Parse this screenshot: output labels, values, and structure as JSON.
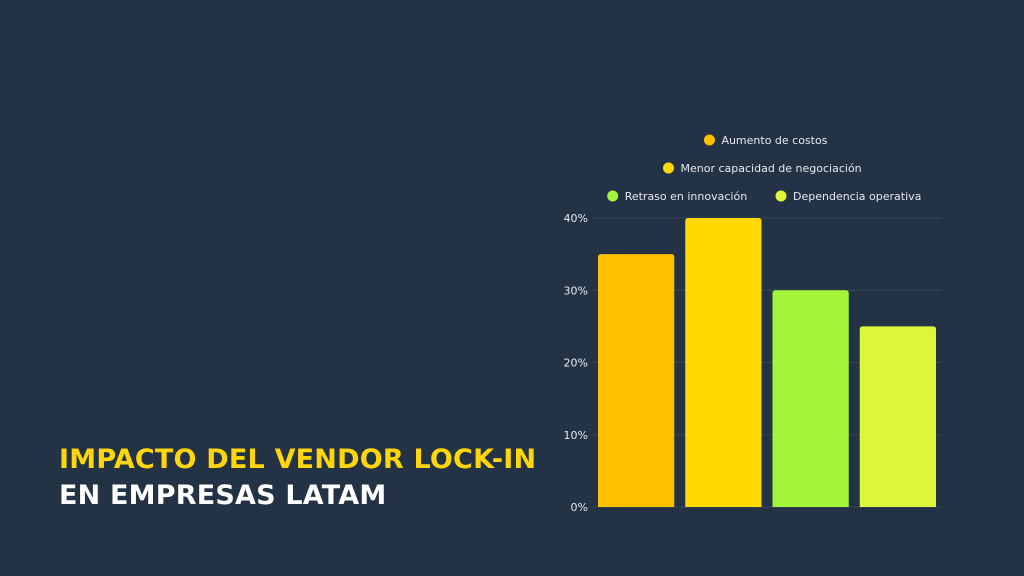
{
  "title": {
    "line1": "IMPACTO DEL VENDOR LOCK-IN",
    "line2": "EN EMPRESAS LATAM"
  },
  "chart_data": {
    "type": "bar",
    "title": "",
    "xlabel": "",
    "ylabel": "",
    "ylim": [
      0,
      40
    ],
    "yticks": [
      0,
      10,
      20,
      30,
      40
    ],
    "ytick_labels": [
      "0%",
      "10%",
      "20%",
      "30%",
      "40%"
    ],
    "grid": true,
    "legend_position": "top",
    "categories": [
      "Aumento de costos",
      "Menor capacidad de negociación",
      "Retraso en innovación",
      "Dependencia operativa"
    ],
    "values": [
      35,
      40,
      30,
      25
    ],
    "colors": [
      "#FFC000",
      "#FFD900",
      "#A3F53A",
      "#DDF53A"
    ]
  }
}
